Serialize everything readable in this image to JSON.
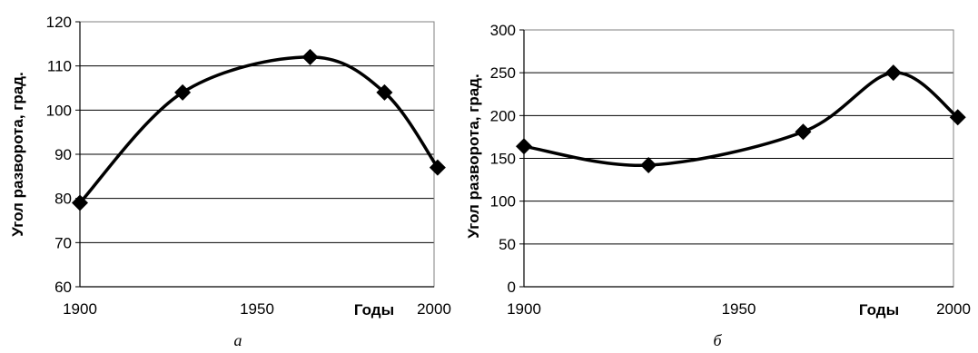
{
  "chart_data": [
    {
      "type": "line",
      "smooth": true,
      "panel_label": "а",
      "xlabel": "Годы",
      "ylabel": "Угол разворота, град.",
      "x_ticks": [
        1900,
        1950,
        2000
      ],
      "xlim": [
        1900,
        2000
      ],
      "y_ticks": [
        60,
        70,
        80,
        90,
        100,
        110,
        120
      ],
      "ylim": [
        60,
        120
      ],
      "grid": "horizontal",
      "legend": "none",
      "line_color": "#000000",
      "marker": "diamond",
      "series": [
        {
          "x": [
            1900,
            1929,
            1965,
            1986,
            2001
          ],
          "y": [
            79,
            104,
            112,
            104,
            87
          ]
        }
      ]
    },
    {
      "type": "line",
      "smooth": true,
      "panel_label": "б",
      "xlabel": "Годы",
      "ylabel": "Угол разворота, град.",
      "x_ticks": [
        1900,
        1950,
        2000
      ],
      "xlim": [
        1900,
        2000
      ],
      "y_ticks": [
        0,
        50,
        100,
        150,
        200,
        250,
        300
      ],
      "ylim": [
        0,
        300
      ],
      "grid": "horizontal",
      "legend": "none",
      "line_color": "#000000",
      "marker": "diamond",
      "series": [
        {
          "x": [
            1900,
            1929,
            1965,
            1986,
            2001
          ],
          "y": [
            164,
            142,
            181,
            250,
            198
          ]
        }
      ]
    }
  ]
}
